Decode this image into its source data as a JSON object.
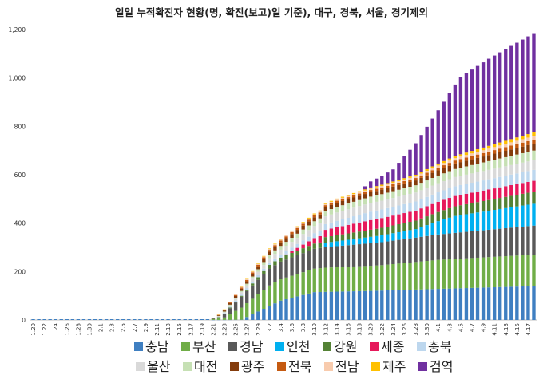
{
  "chart_data": {
    "type": "stacked-bar",
    "title": "일일 누적확진자 현황(명, 확진(보고)일 기준), 대구, 경북, 서울, 경기제외",
    "xlabel": "",
    "ylabel": "",
    "ylim": [
      0,
      1200
    ],
    "yticks": [
      "0",
      "200",
      "400",
      "600",
      "800",
      "1,000",
      "1,200"
    ],
    "ytick_values": [
      0,
      200,
      400,
      600,
      800,
      1000,
      1200
    ],
    "grid": false,
    "legend_position": "bottom",
    "start_date": "1.20",
    "num_days": 90,
    "x_tick_labels": [
      "1.20",
      "1.22",
      "1.24",
      "1.26",
      "1.28",
      "1.30",
      "2.1",
      "2.3",
      "2.5",
      "2.7",
      "2.9",
      "2.11",
      "2.13",
      "2.15",
      "2.17",
      "2.19",
      "2.21",
      "2.23",
      "2.25",
      "2.27",
      "2.29",
      "3.2",
      "3.4",
      "3.6",
      "3.8",
      "3.10",
      "3.12",
      "3.14",
      "3.16",
      "3.18",
      "3.20",
      "3.22",
      "3.24",
      "3.26",
      "3.28",
      "3.30",
      "4.1",
      "4.3",
      "4.5",
      "4.7",
      "4.9",
      "4.11",
      "4.13",
      "4.15",
      "4.17"
    ],
    "series": [
      {
        "name": "충남",
        "color": "#3f7fc1",
        "keys": [
          "2.20",
          "2.26",
          "3.4",
          "3.10",
          "3.20",
          "4.18"
        ],
        "values": [
          0,
          1,
          80,
          115,
          120,
          140
        ]
      },
      {
        "name": "부산",
        "color": "#70ad47",
        "keys": [
          "2.20",
          "2.23",
          "2.26",
          "3.2",
          "3.12",
          "3.22",
          "4.1",
          "4.18"
        ],
        "values": [
          0,
          10,
          50,
          85,
          100,
          105,
          120,
          130
        ]
      },
      {
        "name": "경남",
        "color": "#595959",
        "keys": [
          "2.20",
          "2.22",
          "2.26",
          "3.2",
          "3.12",
          "3.22",
          "4.1",
          "4.18"
        ],
        "values": [
          0,
          4,
          45,
          70,
          85,
          95,
          105,
          120
        ]
      },
      {
        "name": "인천",
        "color": "#00b0f0",
        "keys": [
          "3.12",
          "3.28",
          "4.4",
          "4.18"
        ],
        "values": [
          18,
          35,
          70,
          90
        ]
      },
      {
        "name": "강원",
        "color": "#548235",
        "keys": [
          "2.20",
          "2.26",
          "3.2",
          "3.14",
          "3.28",
          "4.18"
        ],
        "values": [
          0,
          4,
          15,
          25,
          35,
          50
        ]
      },
      {
        "name": "세종",
        "color": "#e6195b",
        "keys": [
          "3.4",
          "3.12",
          "3.20",
          "4.18"
        ],
        "values": [
          0,
          30,
          40,
          45
        ]
      },
      {
        "name": "충북",
        "color": "#bdd7ee",
        "keys": [
          "2.21",
          "2.26",
          "3.6",
          "3.20",
          "4.18"
        ],
        "values": [
          0,
          5,
          15,
          35,
          45
        ]
      },
      {
        "name": "울산",
        "color": "#d9d9d9",
        "keys": [
          "2.21",
          "2.26",
          "3.4",
          "3.14",
          "4.18"
        ],
        "values": [
          0,
          10,
          20,
          35,
          40
        ]
      },
      {
        "name": "대전",
        "color": "#c6e0b4",
        "keys": [
          "2.21",
          "2.26",
          "3.2",
          "3.14",
          "3.28",
          "4.18"
        ],
        "values": [
          0,
          5,
          14,
          23,
          30,
          40
        ]
      },
      {
        "name": "광주",
        "color": "#843c0c",
        "keys": [
          "2.20",
          "2.26",
          "3.4",
          "3.28",
          "4.18"
        ],
        "values": [
          0,
          9,
          15,
          20,
          28
        ]
      },
      {
        "name": "전북",
        "color": "#c55a11",
        "keys": [
          "2.20",
          "2.29",
          "3.28",
          "4.18"
        ],
        "values": [
          0,
          7,
          10,
          17
        ]
      },
      {
        "name": "전남",
        "color": "#f8cbad",
        "keys": [
          "2.20",
          "2.26",
          "3.24",
          "4.18"
        ],
        "values": [
          0,
          3,
          6,
          15
        ]
      },
      {
        "name": "제주",
        "color": "#ffc000",
        "keys": [
          "2.20",
          "2.29",
          "3.28",
          "4.18"
        ],
        "values": [
          0,
          2,
          6,
          15
        ]
      },
      {
        "name": "검역",
        "color": "#7030a0",
        "keys": [
          "3.18",
          "3.20",
          "3.24",
          "3.28",
          "4.1",
          "4.5",
          "4.10",
          "4.18"
        ],
        "values": [
          0,
          25,
          50,
          130,
          220,
          320,
          360,
          410
        ]
      }
    ]
  }
}
